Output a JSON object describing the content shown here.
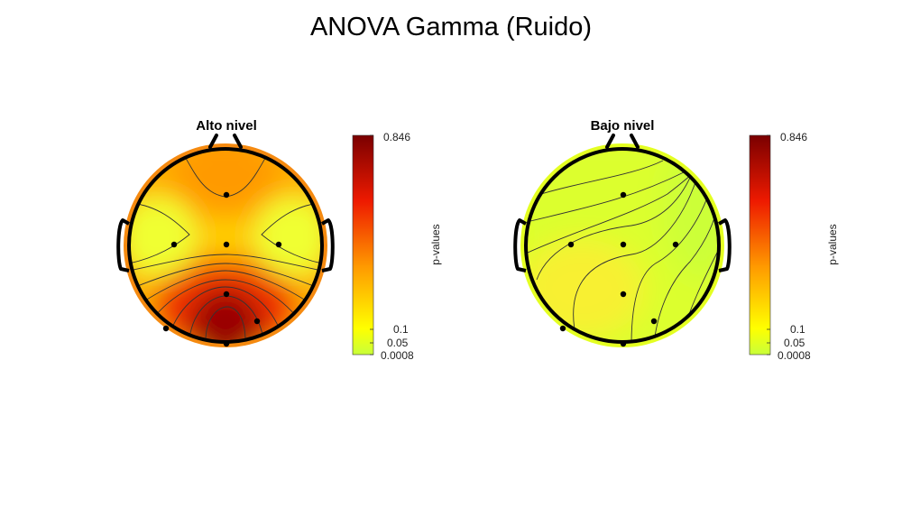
{
  "title": "ANOVA Gamma (Ruido)",
  "chart_data": [
    {
      "type": "heatmap",
      "subtype": "eeg-topographic-map",
      "title": "Alto nivel",
      "colormap": "hot-reversed",
      "colorbar": {
        "label": "p-values",
        "ticks": [
          "0.846",
          "0.1",
          "0.05",
          "0.0008"
        ],
        "range": [
          0.0008,
          0.846
        ]
      },
      "electrodes": [
        {
          "id": "e1",
          "p": 0.6
        },
        {
          "id": "e2",
          "p": 0.1
        },
        {
          "id": "e3",
          "p": 0.55
        },
        {
          "id": "e4",
          "p": 0.1
        },
        {
          "id": "e5",
          "p": 0.8
        },
        {
          "id": "e6",
          "p": 0.6
        },
        {
          "id": "e7",
          "p": 0.35
        },
        {
          "id": "e8",
          "p": 0.846
        }
      ]
    },
    {
      "type": "heatmap",
      "subtype": "eeg-topographic-map",
      "title": "Bajo nivel",
      "colormap": "hot-reversed",
      "colorbar": {
        "label": "p-values",
        "ticks": [
          "0.846",
          "0.1",
          "0.05",
          "0.0008"
        ],
        "range": [
          0.0008,
          0.846
        ]
      },
      "electrodes": [
        {
          "id": "e1",
          "p": 0.06
        },
        {
          "id": "e2",
          "p": 0.09
        },
        {
          "id": "e3",
          "p": 0.07
        },
        {
          "id": "e4",
          "p": 0.04
        },
        {
          "id": "e5",
          "p": 0.1
        },
        {
          "id": "e6",
          "p": 0.06
        },
        {
          "id": "e7",
          "p": 0.1
        },
        {
          "id": "e8",
          "p": 0.09
        }
      ]
    }
  ]
}
